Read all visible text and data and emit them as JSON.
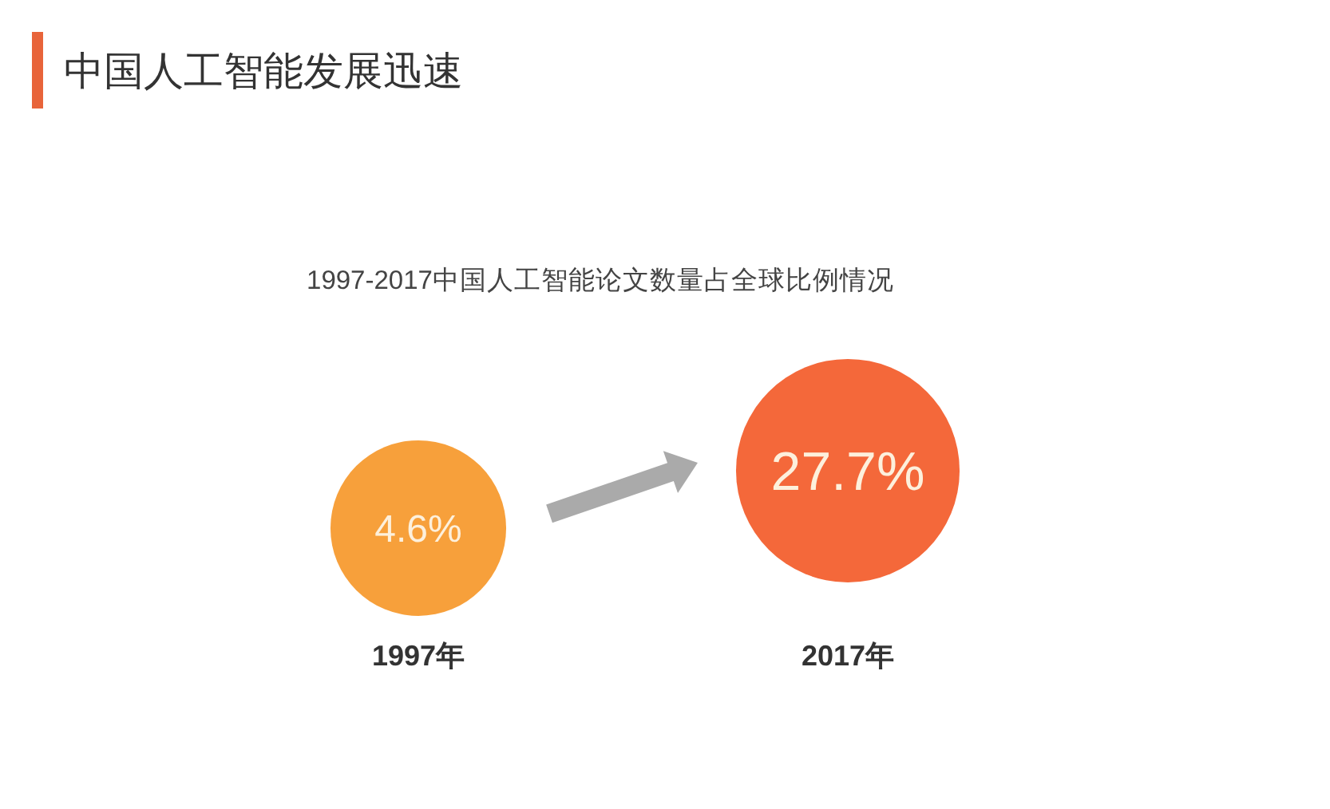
{
  "chart_data": {
    "type": "other",
    "title": "中国人工智能发展迅速",
    "subtitle": "1997-2017中国人工智能论文数量占全球比例情况",
    "categories": [
      "1997年",
      "2017年"
    ],
    "values": [
      4.6,
      27.7
    ],
    "value_labels": [
      "4.6%",
      "27.7%"
    ],
    "colors": [
      "#f7a03b",
      "#f4683a"
    ]
  }
}
